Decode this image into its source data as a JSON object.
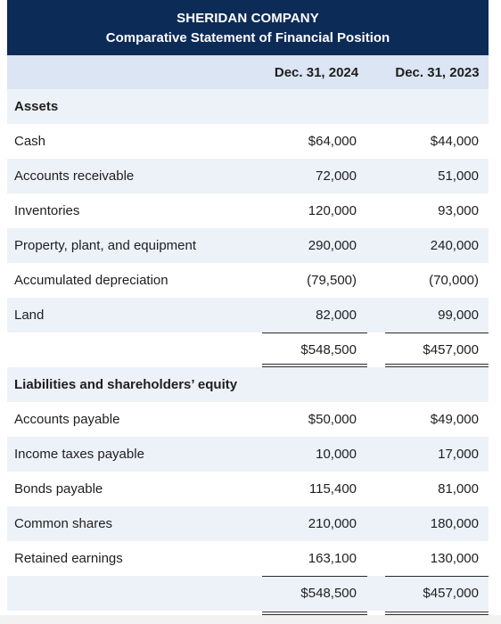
{
  "header": {
    "company": "SHERIDAN COMPANY",
    "statement": "Comparative Statement of Financial Position"
  },
  "columns": {
    "col1": "Dec. 31, 2024",
    "col2": "Dec. 31, 2023"
  },
  "assets": {
    "heading": "Assets",
    "rows": [
      {
        "label": "Cash",
        "v2024": "$64,000",
        "v2023": "$44,000"
      },
      {
        "label": "Accounts receivable",
        "v2024": "72,000",
        "v2023": "51,000"
      },
      {
        "label": "Inventories",
        "v2024": "120,000",
        "v2023": "93,000"
      },
      {
        "label": "Property, plant, and equipment",
        "v2024": "290,000",
        "v2023": "240,000"
      },
      {
        "label": "Accumulated depreciation",
        "v2024": "(79,500)",
        "v2023": "(70,000)"
      },
      {
        "label": "Land",
        "v2024": "82,000",
        "v2023": "99,000"
      }
    ],
    "total": {
      "v2024": "$548,500",
      "v2023": "$457,000"
    }
  },
  "liabilities": {
    "heading": "Liabilities and shareholders’ equity",
    "rows": [
      {
        "label": "Accounts payable",
        "v2024": "$50,000",
        "v2023": "$49,000"
      },
      {
        "label": "Income taxes payable",
        "v2024": "10,000",
        "v2023": "17,000"
      },
      {
        "label": "Bonds payable",
        "v2024": "115,400",
        "v2023": "81,000"
      },
      {
        "label": "Common shares",
        "v2024": "210,000",
        "v2023": "180,000"
      },
      {
        "label": "Retained earnings",
        "v2024": "163,100",
        "v2023": "130,000"
      }
    ],
    "total": {
      "v2024": "$548,500",
      "v2023": "$457,000"
    }
  }
}
